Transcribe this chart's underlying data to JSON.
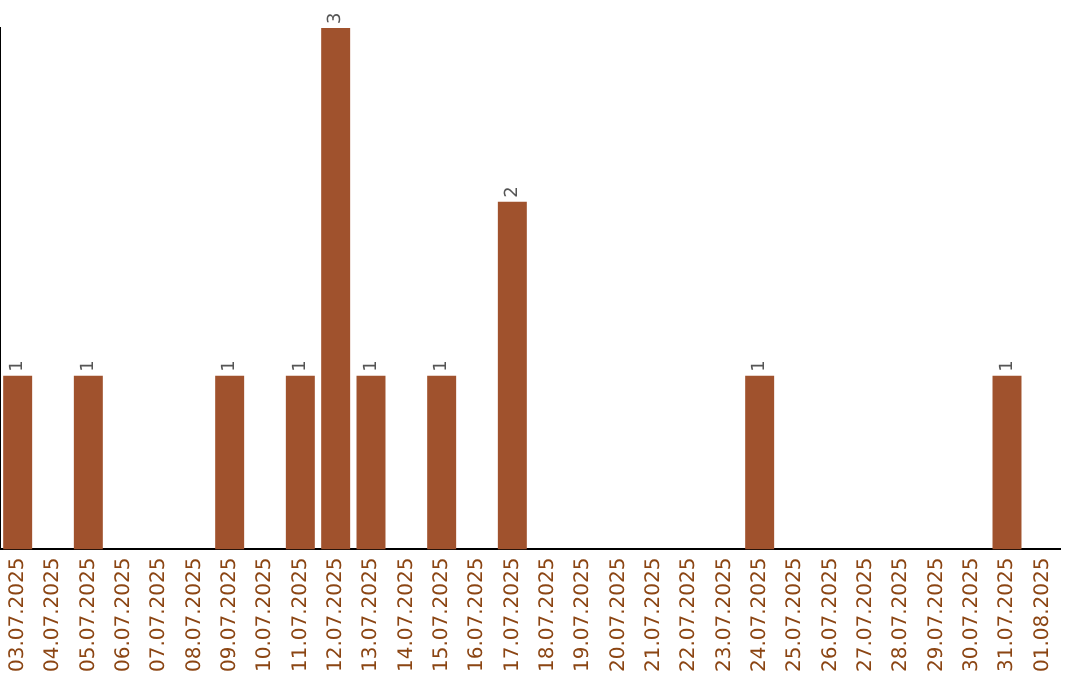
{
  "chart_data": {
    "type": "bar",
    "categories": [
      "03.07.2025",
      "04.07.2025",
      "05.07.2025",
      "06.07.2025",
      "07.07.2025",
      "08.07.2025",
      "09.07.2025",
      "10.07.2025",
      "11.07.2025",
      "12.07.2025",
      "13.07.2025",
      "14.07.2025",
      "15.07.2025",
      "16.07.2025",
      "17.07.2025",
      "18.07.2025",
      "19.07.2025",
      "20.07.2025",
      "21.07.2025",
      "22.07.2025",
      "23.07.2025",
      "24.07.2025",
      "25.07.2025",
      "26.07.2025",
      "27.07.2025",
      "28.07.2025",
      "29.07.2025",
      "30.07.2025",
      "31.07.2025",
      "01.08.2025"
    ],
    "values": [
      1,
      0,
      1,
      0,
      0,
      0,
      1,
      0,
      1,
      3,
      1,
      0,
      1,
      0,
      2,
      0,
      0,
      0,
      0,
      0,
      0,
      1,
      0,
      0,
      0,
      0,
      0,
      0,
      1,
      0
    ],
    "value_labels": [
      "1",
      null,
      "1",
      null,
      null,
      null,
      "1",
      null,
      "1",
      "3",
      "1",
      null,
      "1",
      null,
      "2",
      null,
      null,
      null,
      null,
      null,
      null,
      "1",
      null,
      null,
      null,
      null,
      null,
      null,
      "1",
      null
    ],
    "color": "#a0522d",
    "tick_labels": "x",
    "grid": false,
    "legend": false
  }
}
